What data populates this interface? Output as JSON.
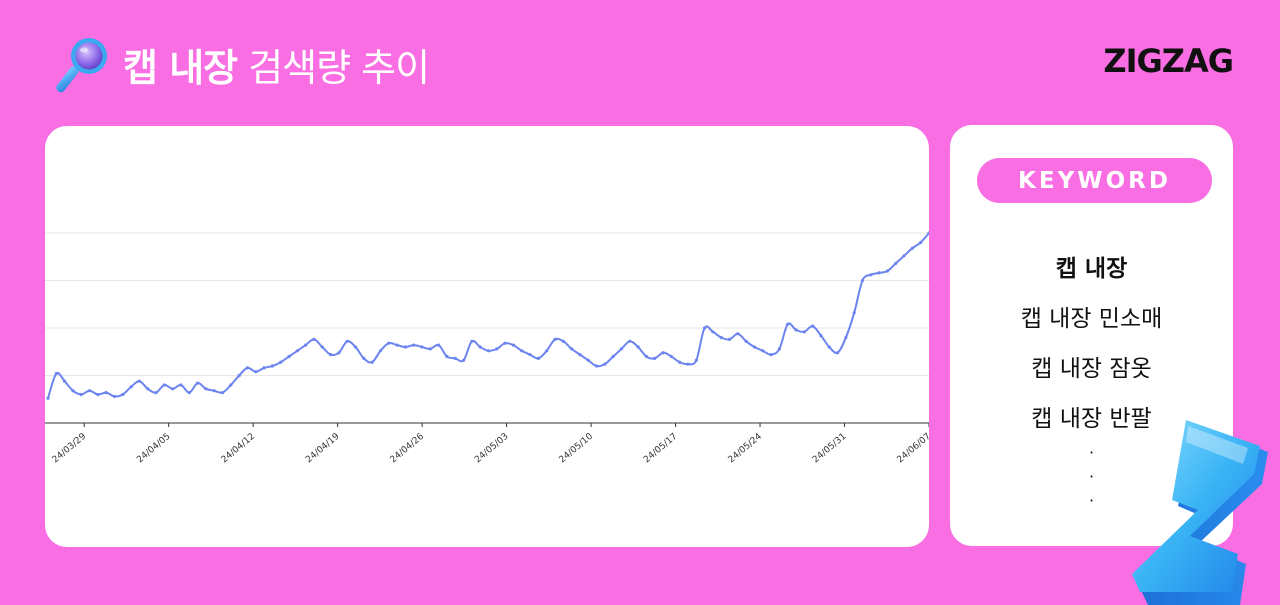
{
  "header": {
    "title_bold": "캡 내장",
    "title_light": "검색량 추이",
    "brand": "ZIGZAG"
  },
  "keyword_panel": {
    "pill_label": "KEYWORD",
    "items": [
      "캡 내장",
      "캡 내장 민소매",
      "캡 내장 잠옷",
      "캡 내장 반팔"
    ],
    "dots": [
      "·",
      "·",
      "·"
    ]
  },
  "colors": {
    "background": "#f96ee2",
    "line": "#6c84ef",
    "card": "#ffffff"
  },
  "chart_data": {
    "type": "line",
    "title": "",
    "xlabel": "",
    "ylabel": "",
    "grid": true,
    "legend": "none",
    "x_start": "24/03/26",
    "x_end": "24/06/07",
    "xticks": [
      "24/03/29",
      "24/04/05",
      "24/04/12",
      "24/04/19",
      "24/04/26",
      "24/05/03",
      "24/05/10",
      "24/05/17",
      "24/05/24",
      "24/05/31",
      "24/06/07"
    ],
    "ylim": [
      0,
      100
    ],
    "series": [
      {
        "values": [
          13,
          26,
          22,
          17,
          15,
          17,
          15,
          16,
          14,
          15,
          19,
          22,
          18,
          16,
          20,
          18,
          20,
          16,
          21,
          18,
          17,
          16,
          20,
          25,
          29,
          27,
          29,
          30,
          32,
          35,
          38,
          41,
          44,
          40,
          36,
          37,
          43,
          40,
          34,
          32,
          38,
          42,
          41,
          40,
          41,
          40,
          39,
          41,
          35,
          34,
          33,
          43,
          40,
          38,
          39,
          42,
          41,
          38,
          36,
          34,
          38,
          44,
          43,
          39,
          36,
          33,
          30,
          31,
          35,
          39,
          43,
          40,
          35,
          34,
          37,
          35,
          32,
          31,
          33,
          50,
          48,
          45,
          44,
          47,
          43,
          40,
          38,
          36,
          39,
          52,
          49,
          48,
          51,
          46,
          40,
          37,
          45,
          58,
          75,
          78,
          79,
          80,
          84,
          88,
          92,
          95,
          100
        ]
      }
    ]
  }
}
